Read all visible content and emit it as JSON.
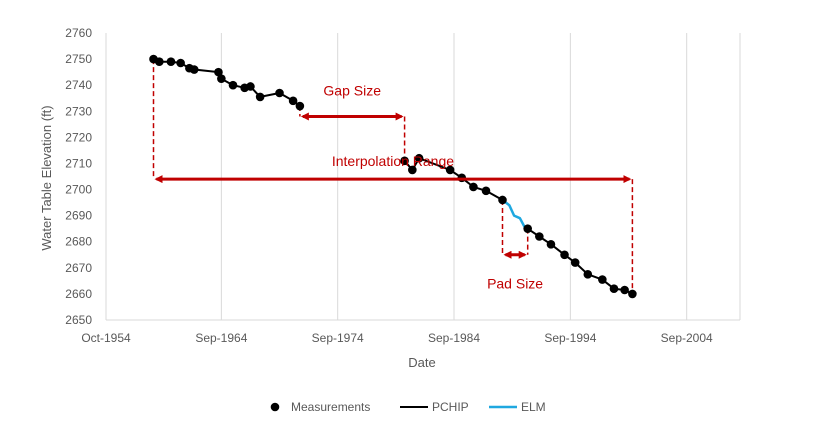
{
  "chart_data": {
    "type": "line",
    "title": "",
    "xlabel": "Date",
    "ylabel": "Water Table Elevation (ft)",
    "xlim": [
      "1954-10",
      "2009-04"
    ],
    "ylim": [
      2650,
      2760
    ],
    "x_ticks": [
      "Oct-1954",
      "Sep-1964",
      "Sep-1974",
      "Sep-1984",
      "Sep-1994",
      "Sep-2004"
    ],
    "y_ticks": [
      2650,
      2660,
      2670,
      2680,
      2690,
      2700,
      2710,
      2720,
      2730,
      2740,
      2750,
      2760
    ],
    "grid": {
      "vertical": true,
      "horizontal": false
    },
    "legend_position": "bottom",
    "colors": {
      "measurements": "#000000",
      "pchip": "#000000",
      "elm": "#1fa8e0",
      "annotation": "#c00000",
      "grid": "#d9d9d9"
    },
    "series": [
      {
        "name": "Measurements",
        "kind": "scatter",
        "points": [
          [
            "1958-11",
            2750
          ],
          [
            "1959-05",
            2749
          ],
          [
            "1960-05",
            2749
          ],
          [
            "1961-03",
            2748.5
          ],
          [
            "1961-12",
            2746.5
          ],
          [
            "1962-05",
            2746
          ],
          [
            "1964-06",
            2745
          ],
          [
            "1964-09",
            2742.5
          ],
          [
            "1965-09",
            2740
          ],
          [
            "1966-09",
            2739
          ],
          [
            "1967-03",
            2739.5
          ],
          [
            "1968-01",
            2735.5
          ],
          [
            "1969-09",
            2737
          ],
          [
            "1970-11",
            2734
          ],
          [
            "1971-06",
            2732
          ],
          [
            "1980-06",
            2711
          ],
          [
            "1981-02",
            2707.5
          ],
          [
            "1981-09",
            2712
          ],
          [
            "1984-05",
            2707.5
          ],
          [
            "1985-05",
            2704.5
          ],
          [
            "1986-05",
            2701
          ],
          [
            "1987-06",
            2699.5
          ],
          [
            "1988-11",
            2696
          ],
          [
            "1991-01",
            2685
          ],
          [
            "1992-01",
            2682
          ],
          [
            "1993-01",
            2679
          ],
          [
            "1994-03",
            2675
          ],
          [
            "1995-02",
            2672
          ],
          [
            "1996-03",
            2667.5
          ],
          [
            "1997-06",
            2665.5
          ],
          [
            "1998-06",
            2662
          ],
          [
            "1999-05",
            2661.5
          ],
          [
            "2000-01",
            2660
          ]
        ]
      },
      {
        "name": "PCHIP",
        "kind": "line",
        "segments": [
          [
            [
              "1958-11",
              2750
            ],
            [
              "1959-05",
              2749
            ],
            [
              "1960-05",
              2749
            ],
            [
              "1961-03",
              2748.5
            ],
            [
              "1961-12",
              2746.5
            ],
            [
              "1962-05",
              2746
            ],
            [
              "1964-06",
              2745
            ],
            [
              "1964-09",
              2742.5
            ],
            [
              "1965-09",
              2740
            ],
            [
              "1966-09",
              2739
            ],
            [
              "1967-03",
              2739.5
            ],
            [
              "1968-01",
              2735.5
            ],
            [
              "1969-09",
              2737
            ],
            [
              "1970-11",
              2734
            ],
            [
              "1971-06",
              2732
            ]
          ],
          [
            [
              "1980-06",
              2711
            ],
            [
              "1981-02",
              2707.5
            ],
            [
              "1981-09",
              2712
            ],
            [
              "1984-05",
              2707.5
            ],
            [
              "1985-05",
              2704.5
            ],
            [
              "1986-05",
              2701
            ],
            [
              "1987-06",
              2699.5
            ],
            [
              "1988-11",
              2696
            ]
          ],
          [
            [
              "1991-01",
              2685
            ],
            [
              "1992-01",
              2682
            ],
            [
              "1993-01",
              2679
            ],
            [
              "1994-03",
              2675
            ],
            [
              "1995-02",
              2672
            ],
            [
              "1996-03",
              2667.5
            ],
            [
              "1997-06",
              2665.5
            ],
            [
              "1998-06",
              2662
            ],
            [
              "1999-05",
              2661.5
            ],
            [
              "2000-01",
              2660
            ]
          ]
        ]
      },
      {
        "name": "ELM",
        "kind": "line",
        "points": [
          [
            "1988-11",
            2696
          ],
          [
            "1989-06",
            2694
          ],
          [
            "1989-11",
            2690
          ],
          [
            "1990-05",
            2689
          ],
          [
            "1990-10",
            2685.5
          ],
          [
            "1991-01",
            2685
          ]
        ]
      }
    ],
    "annotations": [
      {
        "label": "Gap Size",
        "type": "double-arrow",
        "x_range": [
          "1971-06",
          "1980-06"
        ],
        "y": 2728,
        "label_y": 2738
      },
      {
        "label": "Interpolation Range",
        "type": "double-arrow",
        "x_range": [
          "1958-11",
          "2000-01"
        ],
        "y": 2704,
        "label_y": 2711
      },
      {
        "label": "Pad Size",
        "type": "double-arrow",
        "x_range": [
          "1988-11",
          "1991-01"
        ],
        "y": 2675,
        "label_y": 2664
      }
    ],
    "guide_lines": [
      {
        "x": "1958-11",
        "y_from": 2750,
        "y_to": 2704
      },
      {
        "x": "1971-06",
        "y_from": 2732,
        "y_to": 2728
      },
      {
        "x": "1980-06",
        "y_from": 2728,
        "y_to": 2711
      },
      {
        "x": "1988-11",
        "y_from": 2696,
        "y_to": 2675
      },
      {
        "x": "1991-01",
        "y_from": 2685,
        "y_to": 2675
      },
      {
        "x": "2000-01",
        "y_from": 2704,
        "y_to": 2660
      }
    ]
  }
}
